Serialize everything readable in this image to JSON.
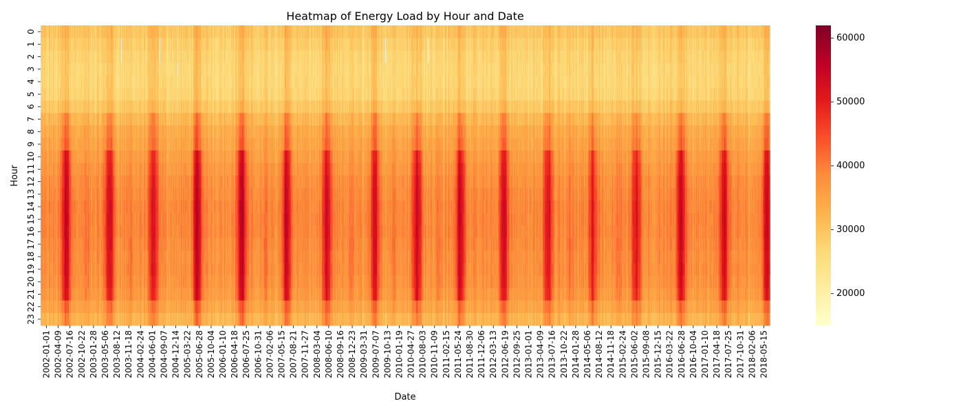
{
  "chart_data": {
    "type": "heatmap",
    "title": "Heatmap of Energy Load by Hour and Date",
    "xlabel": "Date",
    "ylabel": "Hour",
    "x_tick_labels": [
      "2002-01-01",
      "2002-04-09",
      "2002-07-16",
      "2002-10-22",
      "2003-01-28",
      "2003-05-06",
      "2003-08-12",
      "2003-11-18",
      "2004-02-24",
      "2004-06-01",
      "2004-09-07",
      "2004-12-14",
      "2005-03-22",
      "2005-06-28",
      "2005-10-04",
      "2006-01-10",
      "2006-04-18",
      "2006-07-25",
      "2006-10-31",
      "2007-02-06",
      "2007-05-15",
      "2007-08-21",
      "2007-11-27",
      "2008-03-04",
      "2008-06-10",
      "2008-09-16",
      "2008-12-23",
      "2009-03-31",
      "2009-07-07",
      "2009-10-13",
      "2010-01-19",
      "2010-04-27",
      "2010-08-03",
      "2010-11-09",
      "2011-02-15",
      "2011-05-24",
      "2011-08-30",
      "2011-12-06",
      "2012-03-13",
      "2012-06-19",
      "2012-09-25",
      "2013-01-01",
      "2013-04-09",
      "2013-07-16",
      "2013-10-22",
      "2014-01-28",
      "2014-05-06",
      "2014-08-12",
      "2014-11-18",
      "2015-02-24",
      "2015-06-02",
      "2015-09-08",
      "2015-12-15",
      "2016-03-22",
      "2016-06-28",
      "2016-10-04",
      "2017-01-10",
      "2017-04-18",
      "2017-07-25",
      "2017-10-31",
      "2018-02-06",
      "2018-05-15"
    ],
    "y_tick_labels": [
      "0",
      "1",
      "2",
      "3",
      "4",
      "5",
      "6",
      "7",
      "8",
      "9",
      "10",
      "11",
      "12",
      "13",
      "14",
      "15",
      "16",
      "17",
      "18",
      "19",
      "20",
      "21",
      "22",
      "23"
    ],
    "hourly_average_load": [
      29500,
      28000,
      27000,
      26500,
      26500,
      27000,
      29000,
      31500,
      33500,
      34500,
      35500,
      36500,
      37500,
      38000,
      38500,
      38500,
      38500,
      38000,
      37500,
      37500,
      37000,
      36000,
      34500,
      32000
    ],
    "summer_peaks": [
      {
        "date": "2002-08-01",
        "intensity": 1.0
      },
      {
        "date": "2003-07-25",
        "intensity": 0.9
      },
      {
        "date": "2004-07-25",
        "intensity": 0.8
      },
      {
        "date": "2005-07-25",
        "intensity": 1.0
      },
      {
        "date": "2006-07-28",
        "intensity": 1.05
      },
      {
        "date": "2007-08-05",
        "intensity": 0.95
      },
      {
        "date": "2008-07-05",
        "intensity": 0.85
      },
      {
        "date": "2009-08-10",
        "intensity": 0.8
      },
      {
        "date": "2010-07-25",
        "intensity": 1.0
      },
      {
        "date": "2011-07-20",
        "intensity": 1.0
      },
      {
        "date": "2012-07-15",
        "intensity": 0.9
      },
      {
        "date": "2013-07-15",
        "intensity": 0.85
      },
      {
        "date": "2014-07-25",
        "intensity": 0.7
      },
      {
        "date": "2015-07-20",
        "intensity": 0.85
      },
      {
        "date": "2016-07-25",
        "intensity": 1.0
      },
      {
        "date": "2017-07-20",
        "intensity": 0.9
      },
      {
        "date": "2018-07-10",
        "intensity": 0.95
      }
    ],
    "winter_peaks": [
      {
        "date": "2003-01-20",
        "intensity": 0.3
      },
      {
        "date": "2004-01-20",
        "intensity": 0.35
      },
      {
        "date": "2007-02-10",
        "intensity": 0.35
      },
      {
        "date": "2009-01-20",
        "intensity": 0.3
      },
      {
        "date": "2010-01-10",
        "intensity": 0.35
      },
      {
        "date": "2011-01-20",
        "intensity": 0.35
      },
      {
        "date": "2014-01-20",
        "intensity": 0.4
      },
      {
        "date": "2015-02-20",
        "intensity": 0.4
      }
    ],
    "missing_cells": [
      {
        "date": "2003-11-01",
        "hours": [
          1,
          2
        ]
      },
      {
        "date": "2004-09-15",
        "hours": [
          1,
          2
        ]
      },
      {
        "date": "2005-02-15",
        "hours": [
          3
        ]
      },
      {
        "date": "2009-11-05",
        "hours": [
          1,
          2
        ]
      },
      {
        "date": "2010-10-25",
        "hours": [
          1,
          2
        ]
      }
    ],
    "colorbar": {
      "colormap": "YlOrRd",
      "range": [
        15000,
        62000
      ],
      "ticks": [
        20000,
        30000,
        40000,
        50000,
        60000
      ],
      "tick_labels": [
        "20000",
        "30000",
        "40000",
        "50000",
        "60000"
      ]
    }
  }
}
